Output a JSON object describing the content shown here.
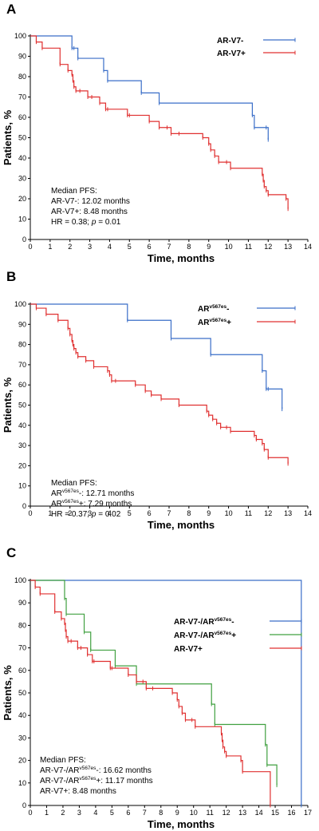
{
  "chart_data": [
    {
      "type": "line",
      "panel_label": "A",
      "xlabel": "Time, months",
      "ylabel": "Patients, %",
      "xlim": [
        0,
        14
      ],
      "ylim": [
        0,
        100
      ],
      "x_ticks": [
        0,
        1,
        2,
        3,
        4,
        5,
        6,
        7,
        8,
        9,
        10,
        11,
        12,
        13,
        14
      ],
      "y_ticks": [
        0,
        10,
        20,
        30,
        40,
        50,
        60,
        70,
        80,
        90,
        100
      ],
      "legend_position": "top-right",
      "series": [
        {
          "name": "AR-V7-",
          "color": "#3a6ec8",
          "x": [
            0,
            2.1,
            2.2,
            2.4,
            3.7,
            3.9,
            5.6,
            6.5,
            11.2,
            11.3,
            11.9,
            12.0
          ],
          "y": [
            100,
            94,
            94,
            89,
            83,
            78,
            72,
            67,
            61,
            55,
            55,
            49
          ]
        },
        {
          "name": "AR-V7+",
          "color": "#e03030",
          "x": [
            0,
            0.3,
            0.6,
            1.5,
            1.9,
            2.1,
            2.15,
            2.2,
            2.3,
            2.5,
            2.9,
            3.1,
            3.5,
            3.8,
            3.9,
            4.9,
            5.0,
            6.0,
            6.5,
            6.9,
            7.1,
            7.5,
            8.7,
            9.0,
            9.1,
            9.3,
            9.5,
            9.9,
            10.1,
            11.7,
            11.75,
            11.8,
            11.9,
            12.0,
            12.9,
            13.0
          ],
          "y": [
            100,
            97,
            94,
            86,
            83,
            81,
            78,
            75,
            73,
            73,
            70,
            70,
            67,
            64,
            64,
            61,
            61,
            58,
            55,
            55,
            52,
            52,
            50,
            47,
            44,
            41,
            38,
            38,
            35,
            32,
            29,
            26,
            24,
            22,
            20,
            15
          ]
        }
      ],
      "annotations": [
        "Median PFS:",
        "AR-V7-: 12.02 months",
        "AR-V7+: 8.48 months",
        "HR = 0.38; p = 0.01"
      ]
    },
    {
      "type": "line",
      "panel_label": "B",
      "xlabel": "Time, months",
      "ylabel": "Patients, %",
      "xlim": [
        0,
        14
      ],
      "ylim": [
        0,
        100
      ],
      "x_ticks": [
        0,
        1,
        2,
        3,
        4,
        5,
        6,
        7,
        8,
        9,
        10,
        11,
        12,
        13,
        14
      ],
      "y_ticks": [
        0,
        10,
        20,
        30,
        40,
        50,
        60,
        70,
        80,
        90,
        100
      ],
      "legend_position": "top-right",
      "series": [
        {
          "name": "ARv567es-",
          "color": "#3a6ec8",
          "x": [
            0,
            4.9,
            7.1,
            9.1,
            11.7,
            11.9,
            12.0,
            12.7
          ],
          "y": [
            100,
            92,
            83,
            75,
            67,
            58,
            58,
            48
          ]
        },
        {
          "name": "ARv567es+",
          "color": "#e03030",
          "x": [
            0,
            0.3,
            0.8,
            1.4,
            1.9,
            2.0,
            2.1,
            2.15,
            2.2,
            2.3,
            2.4,
            2.8,
            3.2,
            3.9,
            4.0,
            4.1,
            4.3,
            5.3,
            5.8,
            6.1,
            6.6,
            7.5,
            8.9,
            9.0,
            9.2,
            9.4,
            9.6,
            9.9,
            10.1,
            11.3,
            11.4,
            11.7,
            11.8,
            12.0,
            13.0
          ],
          "y": [
            100,
            98,
            95,
            92,
            88,
            85,
            82,
            80,
            78,
            76,
            74,
            72,
            69,
            67,
            65,
            62,
            62,
            60,
            57,
            55,
            53,
            50,
            47,
            45,
            43,
            41,
            39,
            39,
            37,
            35,
            33,
            31,
            28,
            24,
            21
          ]
        }
      ],
      "annotations": [
        "Median PFS:",
        "ARv567es-: 12.71 months",
        "ARv567es+: 7.29 months",
        "HR = 0.37; p = 0.02"
      ]
    },
    {
      "type": "line",
      "panel_label": "C",
      "xlabel": "Time, months",
      "ylabel": "Patients, %",
      "xlim": [
        0,
        17
      ],
      "ylim": [
        0,
        100
      ],
      "x_ticks": [
        0,
        1,
        2,
        3,
        4,
        5,
        6,
        7,
        8,
        9,
        10,
        11,
        12,
        13,
        14,
        15,
        16,
        17
      ],
      "y_ticks": [
        0,
        10,
        20,
        30,
        40,
        50,
        60,
        70,
        80,
        90,
        100
      ],
      "legend_position": "top-right",
      "series": [
        {
          "name": "AR-V7-/ARv567es-",
          "color": "#3a6ec8",
          "x": [
            0,
            16.6
          ],
          "y": [
            100,
            0
          ]
        },
        {
          "name": "AR-V7-/ARv567es+",
          "color": "#40a040",
          "x": [
            0,
            2.1,
            2.2,
            3.3,
            3.7,
            5.2,
            6.5,
            11.1,
            11.3,
            14.4,
            14.5,
            15.1
          ],
          "y": [
            100,
            92,
            85,
            77,
            69,
            62,
            54,
            45,
            36,
            27,
            18,
            9
          ]
        },
        {
          "name": "AR-V7+",
          "color": "#e03030",
          "x": [
            0,
            0.3,
            0.6,
            1.5,
            1.9,
            2.1,
            2.15,
            2.2,
            2.3,
            2.5,
            2.9,
            3.1,
            3.5,
            3.8,
            3.9,
            4.9,
            5.0,
            6.0,
            6.5,
            6.9,
            7.1,
            7.5,
            8.7,
            9.0,
            9.1,
            9.3,
            9.5,
            9.9,
            10.1,
            11.7,
            11.75,
            11.8,
            11.9,
            12.0,
            12.9,
            13.0,
            14.7
          ],
          "y": [
            100,
            97,
            94,
            86,
            83,
            81,
            78,
            75,
            73,
            73,
            70,
            70,
            67,
            64,
            64,
            61,
            61,
            58,
            55,
            55,
            52,
            52,
            50,
            47,
            44,
            41,
            38,
            38,
            35,
            32,
            29,
            26,
            24,
            22,
            20,
            15,
            0
          ]
        }
      ],
      "annotations": [
        "Median PFS:",
        "AR-V7-/ARv567es-: 16.62 months",
        "AR-V7-/ARv567es+: 11.17 months",
        "AR-V7+: 8.48 months"
      ]
    }
  ],
  "labels": {
    "A": {
      "legend": [
        {
          "main": "AR-V7-",
          "sup": "",
          "tail": ""
        },
        {
          "main": "AR-V7+",
          "sup": "",
          "tail": ""
        }
      ],
      "annot": [
        {
          "parts": [
            [
              "Median PFS:",
              ""
            ]
          ]
        },
        {
          "parts": [
            [
              "AR-V7-: 12.02 months",
              ""
            ]
          ]
        },
        {
          "parts": [
            [
              "AR-V7+: 8.48 months",
              ""
            ]
          ]
        },
        {
          "parts": [
            [
              "HR = 0.38; ",
              ""
            ],
            [
              "p",
              "i"
            ],
            [
              " = 0.01",
              ""
            ]
          ]
        }
      ]
    },
    "B": {
      "legend": [
        {
          "main": "AR",
          "sup": "v567es",
          "tail": "-"
        },
        {
          "main": "AR",
          "sup": "v567es",
          "tail": "+"
        }
      ],
      "annot": [
        {
          "parts": [
            [
              "Median PFS:",
              ""
            ]
          ]
        },
        {
          "parts": [
            [
              "AR",
              ""
            ],
            [
              "v567es",
              "s"
            ],
            [
              "-: 12.71 months",
              ""
            ]
          ]
        },
        {
          "parts": [
            [
              "AR",
              ""
            ],
            [
              "v567es",
              "s"
            ],
            [
              "+: 7.29 months",
              ""
            ]
          ]
        },
        {
          "parts": [
            [
              "HR = 0.37; ",
              ""
            ],
            [
              "p",
              "i"
            ],
            [
              " = 0.02",
              ""
            ]
          ]
        }
      ]
    },
    "C": {
      "legend": [
        {
          "main": "AR-V7-/AR",
          "sup": "v567es",
          "tail": "-"
        },
        {
          "main": "AR-V7-/AR",
          "sup": "v567es",
          "tail": "+"
        },
        {
          "main": "AR-V7+",
          "sup": "",
          "tail": ""
        }
      ],
      "annot": [
        {
          "parts": [
            [
              "Median PFS:",
              ""
            ]
          ]
        },
        {
          "parts": [
            [
              "AR-V7-/AR",
              ""
            ],
            [
              "v567es",
              "s"
            ],
            [
              "-: 16.62 months",
              ""
            ]
          ]
        },
        {
          "parts": [
            [
              "AR-V7-/AR",
              ""
            ],
            [
              "v567es",
              "s"
            ],
            [
              "+: 11.17 months",
              ""
            ]
          ]
        },
        {
          "parts": [
            [
              "AR-V7+: 8.48 months",
              ""
            ]
          ]
        }
      ]
    }
  }
}
